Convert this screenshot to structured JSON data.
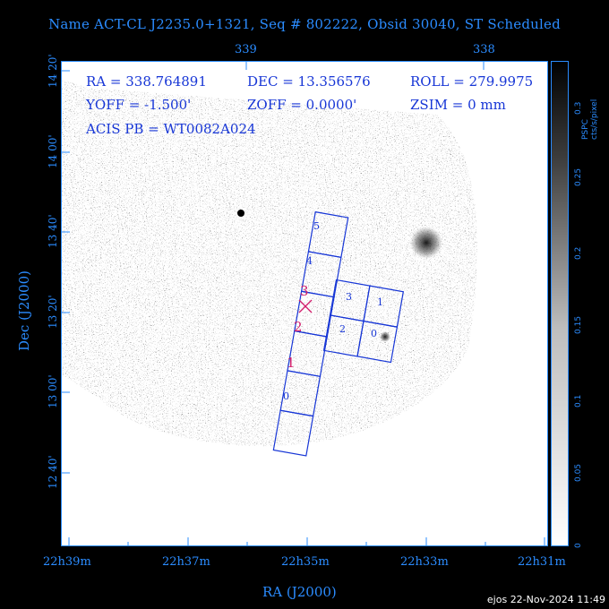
{
  "header": {
    "title": "Name ACT-CL J2235.0+1321, Seq # 802222, Obsid 30040, ST Scheduled"
  },
  "pointing": {
    "ra": "RA = 338.764891",
    "dec": "DEC = 13.356576",
    "roll": "ROLL = 279.9975",
    "yoff": "YOFF = -1.500'",
    "zoff": "ZOFF = 0.0000'",
    "zsim": "ZSIM = 0 mm",
    "acis_pb": "ACIS PB = WT0082A024"
  },
  "axes": {
    "x_title": "RA (J2000)",
    "y_title": "Dec (J2000)",
    "x_bottom_ticks": [
      "22h39m",
      "22h37m",
      "22h35m",
      "22h33m",
      "22h31m"
    ],
    "x_top_ticks": [
      "339",
      "338"
    ],
    "y_ticks": [
      "14 20'",
      "14 00'",
      "13 40'",
      "13 20'",
      "13 00'",
      "12 40'"
    ]
  },
  "colorbar": {
    "label": "PSPC cts/s/pixel",
    "ticks": [
      "0.3",
      "0.25",
      "0.2",
      "0.15",
      "0.1",
      "0.05",
      "0"
    ]
  },
  "chips": {
    "i_array": [
      "3",
      "1",
      "2",
      "0"
    ],
    "s_array": [
      "5",
      "4",
      "3",
      "2",
      "1",
      "0"
    ]
  },
  "footer": {
    "stamp": "ejos 22-Nov-2024 11:49"
  },
  "colors": {
    "frame": "#2b8cff",
    "chip_outline": "#1736d6",
    "highlight": "#d21e6b"
  }
}
